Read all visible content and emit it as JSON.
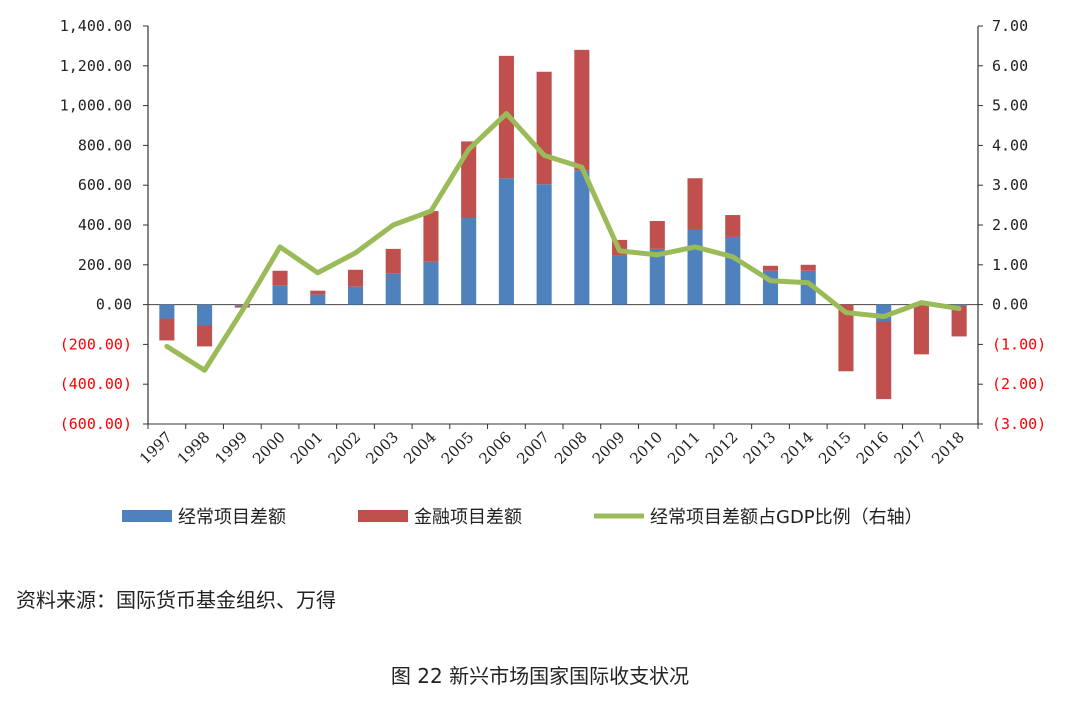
{
  "chart_data": {
    "type": "bar",
    "categories": [
      "1997",
      "1998",
      "1999",
      "2000",
      "2001",
      "2002",
      "2003",
      "2004",
      "2005",
      "2006",
      "2007",
      "2008",
      "2009",
      "2010",
      "2011",
      "2012",
      "2013",
      "2014",
      "2015",
      "2016",
      "2017",
      "2018"
    ],
    "series": [
      {
        "name": "经常项目差额",
        "kind": "bar",
        "axis": "left",
        "color": "#4f81bd",
        "values": [
          -70,
          -105,
          -5,
          95,
          50,
          90,
          155,
          215,
          435,
          635,
          605,
          675,
          245,
          280,
          375,
          340,
          170,
          170,
          0,
          -85,
          10,
          -5
        ]
      },
      {
        "name": "金融项目差额",
        "kind": "bar",
        "axis": "left",
        "color": "#c0504d",
        "values": [
          -110,
          -105,
          -10,
          75,
          20,
          85,
          125,
          255,
          385,
          615,
          565,
          605,
          80,
          140,
          260,
          110,
          25,
          30,
          -335,
          -390,
          -250,
          -155
        ]
      },
      {
        "name": "经常项目差额占GDP比例（右轴）",
        "kind": "line",
        "axis": "right",
        "color": "#9bbb59",
        "values": [
          -1.05,
          -1.65,
          -0.15,
          1.45,
          0.8,
          1.3,
          2.0,
          2.35,
          3.9,
          4.8,
          3.75,
          3.45,
          1.35,
          1.25,
          1.45,
          1.2,
          0.6,
          0.55,
          -0.2,
          -0.3,
          0.05,
          -0.1
        ]
      }
    ],
    "y_left": {
      "min": -600,
      "max": 1400,
      "step": 200,
      "tick_labels": [
        "(600.00)",
        "(400.00)",
        "(200.00)",
        "0.00",
        "200.00",
        "400.00",
        "600.00",
        "800.00",
        "1,000.00",
        "1,200.00",
        "1,400.00"
      ]
    },
    "y_right": {
      "min": -3,
      "max": 7,
      "step": 1,
      "tick_labels": [
        "(3.00)",
        "(2.00)",
        "(1.00)",
        "0.00",
        "1.00",
        "2.00",
        "3.00",
        "4.00",
        "5.00",
        "6.00",
        "7.00"
      ]
    },
    "negative_label_color": "#ff0000",
    "stacked": true,
    "legend_position": "bottom"
  },
  "source_text": "资料来源：国际货币基金组织、万得",
  "caption": "图 22  新兴市场国家国际收支状况"
}
